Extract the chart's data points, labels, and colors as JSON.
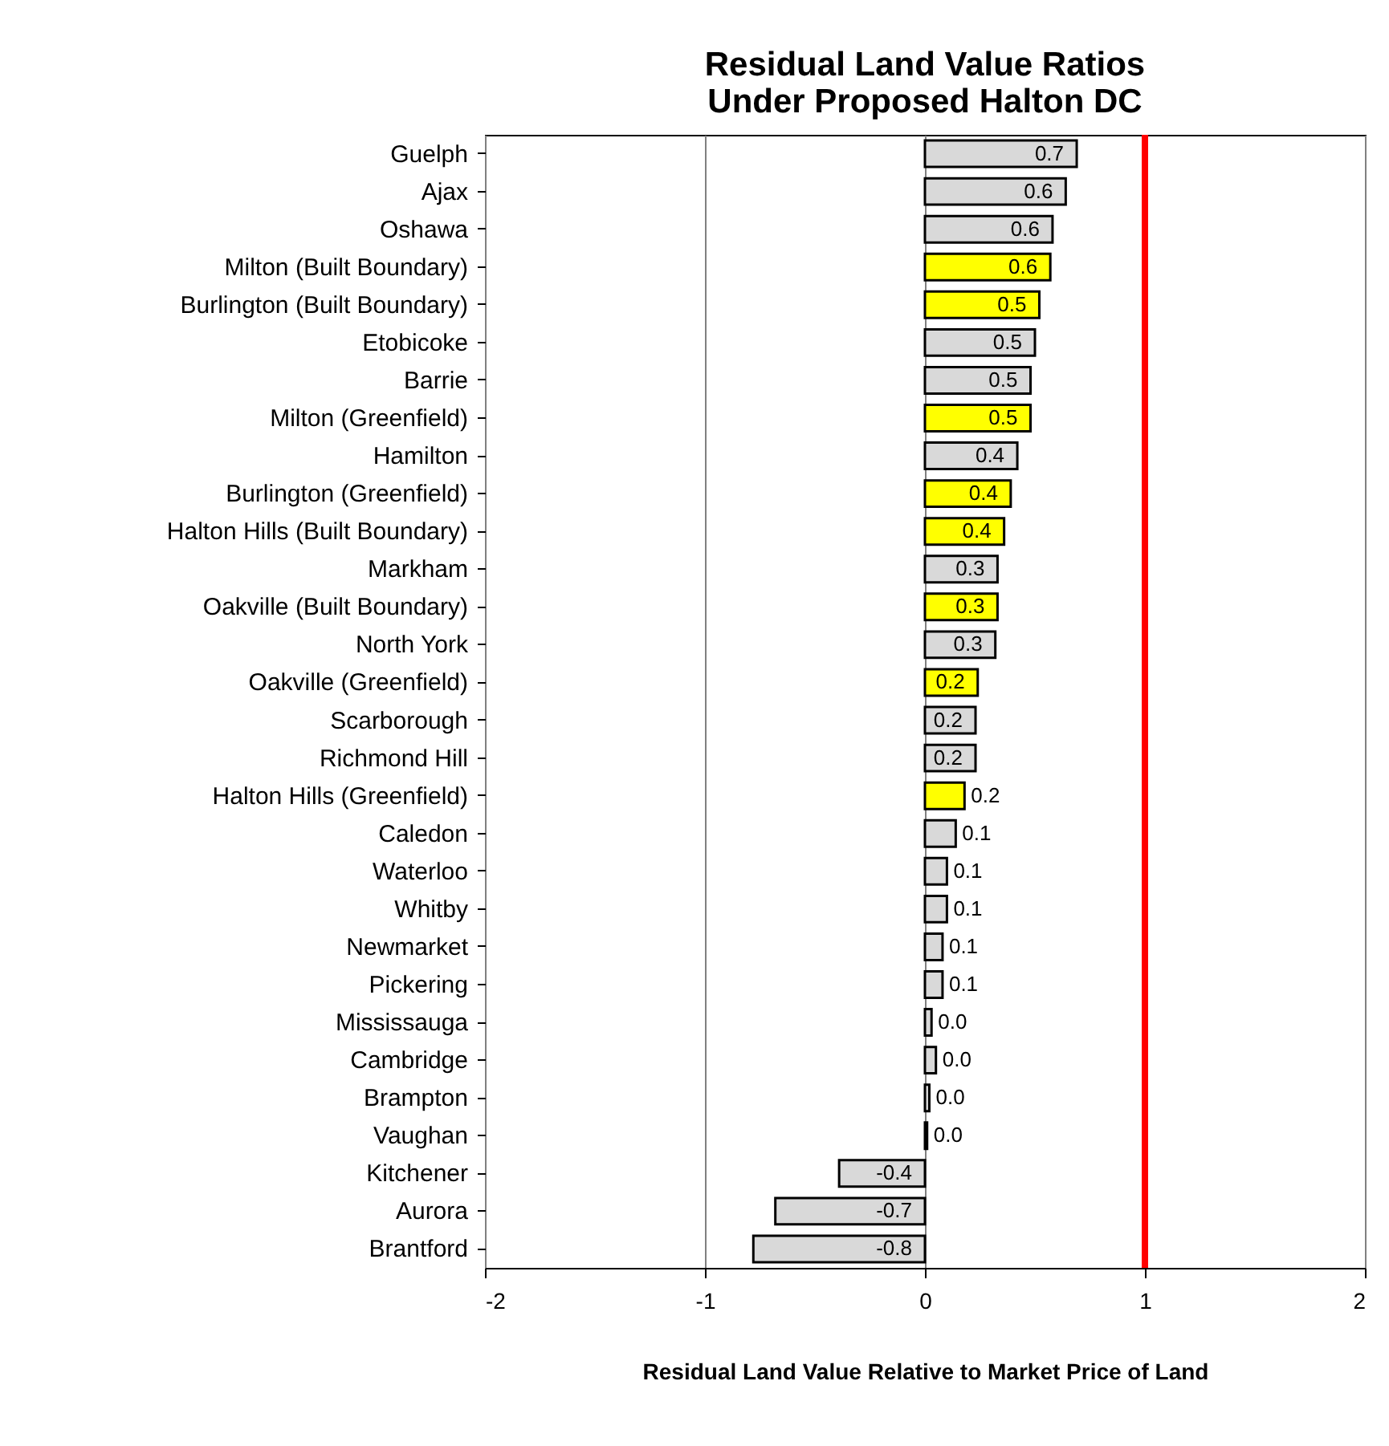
{
  "chart_data": {
    "type": "bar",
    "orientation": "horizontal",
    "title": "Residual Land Value Ratios\nUnder Proposed Halton DC",
    "xlabel": "Residual Land Value Relative to Market Price of Land",
    "categories": [
      "Guelph",
      "Ajax",
      "Oshawa",
      "Milton (Built Boundary)",
      "Burlington (Built Boundary)",
      "Etobicoke",
      "Barrie",
      "Milton (Greenfield)",
      "Hamilton",
      "Burlington (Greenfield)",
      "Halton Hills (Built Boundary)",
      "Markham",
      "Oakville (Built Boundary)",
      "North York",
      "Oakville (Greenfield)",
      "Scarborough",
      "Richmond Hill",
      "Halton Hills (Greenfield)",
      "Caledon",
      "Waterloo",
      "Whitby",
      "Newmarket",
      "Pickering",
      "Mississauga",
      "Cambridge",
      "Brampton",
      "Vaughan",
      "Kitchener",
      "Aurora",
      "Brantford"
    ],
    "values": [
      0.69,
      0.64,
      0.58,
      0.57,
      0.52,
      0.5,
      0.48,
      0.48,
      0.42,
      0.39,
      0.36,
      0.33,
      0.33,
      0.32,
      0.24,
      0.23,
      0.23,
      0.18,
      0.14,
      0.1,
      0.1,
      0.08,
      0.08,
      0.03,
      0.05,
      0.02,
      0.01,
      -0.39,
      -0.68,
      -0.78
    ],
    "value_labels": [
      "0.7",
      "0.6",
      "0.6",
      "0.6",
      "0.5",
      "0.5",
      "0.5",
      "0.5",
      "0.4",
      "0.4",
      "0.4",
      "0.3",
      "0.3",
      "0.3",
      "0.2",
      "0.2",
      "0.2",
      "0.2",
      "0.1",
      "0.1",
      "0.1",
      "0.1",
      "0.1",
      "0.0",
      "0.0",
      "0.0",
      "0.0",
      "-0.4",
      "-0.7",
      "-0.8"
    ],
    "colors": [
      "#d9d9d9",
      "#d9d9d9",
      "#d9d9d9",
      "#ffff00",
      "#ffff00",
      "#d9d9d9",
      "#d9d9d9",
      "#ffff00",
      "#d9d9d9",
      "#ffff00",
      "#ffff00",
      "#d9d9d9",
      "#ffff00",
      "#d9d9d9",
      "#ffff00",
      "#d9d9d9",
      "#d9d9d9",
      "#ffff00",
      "#d9d9d9",
      "#d9d9d9",
      "#d9d9d9",
      "#d9d9d9",
      "#d9d9d9",
      "#d9d9d9",
      "#d9d9d9",
      "#d9d9d9",
      "#d9d9d9",
      "#d9d9d9",
      "#d9d9d9",
      "#d9d9d9"
    ],
    "xlim": [
      -2,
      2
    ],
    "xticks": [
      -2,
      -1,
      0,
      1,
      2
    ],
    "grid": "x",
    "ref_lines": [
      {
        "axis": "x",
        "value": 1,
        "label": null,
        "color": "#ff0000"
      }
    ]
  }
}
